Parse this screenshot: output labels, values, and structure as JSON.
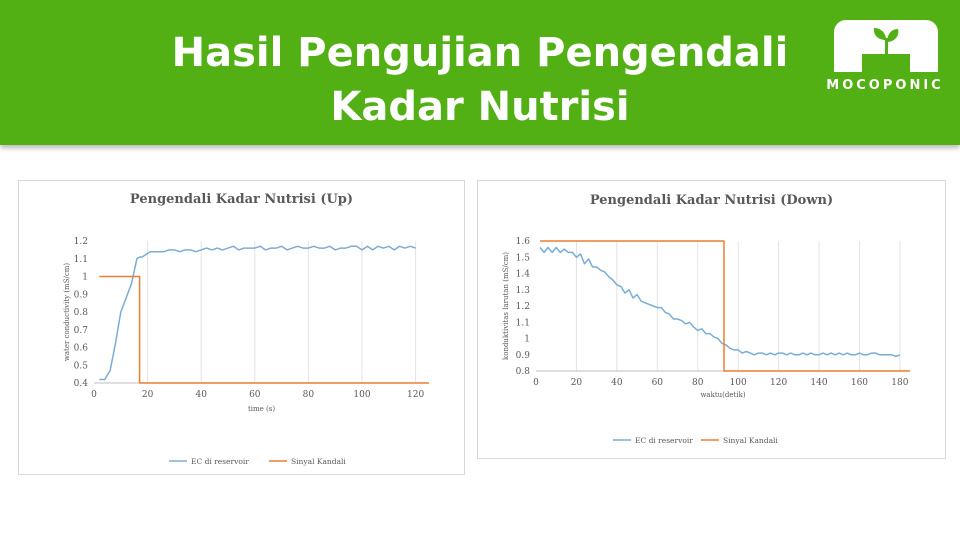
{
  "header": {
    "title_line1": "Hasil Pengujian Pengendali",
    "title_line2": "Kadar Nutrisi",
    "logo_text": "MOCOPONIC",
    "logo_icon": "sprout-icon",
    "background_color": "#52b014"
  },
  "chart_data": [
    {
      "type": "line",
      "title": "Pengendali Kadar Nutrisi  (Up)",
      "xlabel": "time (s)",
      "ylabel": "water conductivity (mS/cm)",
      "xlim": [
        0,
        125
      ],
      "ylim": [
        0.4,
        1.2
      ],
      "xticks": [
        0,
        20,
        40,
        60,
        80,
        100,
        120
      ],
      "yticks": [
        0.4,
        0.5,
        0.6,
        0.7,
        0.8,
        0.9,
        1,
        1.1,
        1.2
      ],
      "ytick_labels": [
        "0.4",
        "0.5",
        "0.6",
        "0.7",
        "0.8",
        "0.9",
        "1",
        "1.1",
        "1.2"
      ],
      "grid": "vertical",
      "legend": "bottom",
      "series": [
        {
          "name": "EC di reservoir",
          "color": "#7aadd6",
          "x": [
            2,
            4,
            6,
            8,
            10,
            12,
            14,
            16,
            17,
            18,
            20,
            21,
            22,
            24,
            26,
            28,
            30,
            32,
            34,
            36,
            38,
            40,
            42,
            44,
            46,
            48,
            50,
            52,
            54,
            56,
            58,
            60,
            62,
            64,
            66,
            68,
            70,
            72,
            74,
            76,
            78,
            80,
            82,
            84,
            86,
            88,
            90,
            92,
            94,
            96,
            98,
            100,
            102,
            104,
            106,
            108,
            110,
            112,
            114,
            116,
            118,
            120
          ],
          "y": [
            0.42,
            0.42,
            0.47,
            0.62,
            0.8,
            0.88,
            0.96,
            1.1,
            1.11,
            1.11,
            1.13,
            1.14,
            1.14,
            1.14,
            1.14,
            1.15,
            1.15,
            1.14,
            1.15,
            1.15,
            1.14,
            1.15,
            1.16,
            1.15,
            1.16,
            1.15,
            1.16,
            1.17,
            1.15,
            1.16,
            1.16,
            1.16,
            1.17,
            1.15,
            1.16,
            1.16,
            1.17,
            1.15,
            1.16,
            1.17,
            1.16,
            1.16,
            1.17,
            1.16,
            1.16,
            1.17,
            1.15,
            1.16,
            1.16,
            1.17,
            1.17,
            1.15,
            1.17,
            1.15,
            1.17,
            1.16,
            1.17,
            1.15,
            1.17,
            1.16,
            1.17,
            1.16
          ]
        },
        {
          "name": "Sinyal Kandali",
          "color": "#ed7d31",
          "x": [
            2,
            17,
            17,
            125
          ],
          "y": [
            1.0,
            1.0,
            0.4,
            0.4
          ]
        }
      ]
    },
    {
      "type": "line",
      "title": "Pengendali Kadar Nutrisi  (Down)",
      "xlabel": "waktu(detik)",
      "ylabel": "konduktivitas larutan (mS/cm)",
      "xlim": [
        0,
        185
      ],
      "ylim": [
        0.8,
        1.6
      ],
      "xticks": [
        0,
        20,
        40,
        60,
        80,
        100,
        120,
        140,
        160,
        180
      ],
      "yticks": [
        0.8,
        0.9,
        1,
        1.1,
        1.2,
        1.3,
        1.4,
        1.5,
        1.6
      ],
      "ytick_labels": [
        "0.8",
        "0.9",
        "1",
        "1.1",
        "1.2",
        "1.3",
        "1.4",
        "1.5",
        "1.6"
      ],
      "grid": "vertical",
      "legend": "bottom",
      "series": [
        {
          "name": "EC di reservoir",
          "color": "#7aadd6",
          "x": [
            2,
            4,
            6,
            8,
            10,
            12,
            14,
            16,
            18,
            20,
            22,
            24,
            26,
            28,
            30,
            32,
            34,
            36,
            38,
            40,
            42,
            44,
            46,
            48,
            50,
            52,
            54,
            56,
            58,
            60,
            62,
            64,
            66,
            68,
            70,
            72,
            74,
            76,
            78,
            80,
            82,
            84,
            86,
            88,
            90,
            92,
            94,
            96,
            98,
            100,
            102,
            104,
            106,
            108,
            110,
            112,
            114,
            116,
            118,
            120,
            122,
            124,
            126,
            128,
            130,
            132,
            134,
            136,
            138,
            140,
            142,
            144,
            146,
            148,
            150,
            152,
            154,
            156,
            158,
            160,
            162,
            164,
            166,
            168,
            170,
            172,
            174,
            176,
            178,
            180
          ],
          "y": [
            1.56,
            1.53,
            1.56,
            1.53,
            1.56,
            1.53,
            1.55,
            1.53,
            1.53,
            1.5,
            1.52,
            1.46,
            1.49,
            1.44,
            1.44,
            1.42,
            1.41,
            1.38,
            1.36,
            1.33,
            1.32,
            1.28,
            1.3,
            1.25,
            1.27,
            1.23,
            1.22,
            1.21,
            1.2,
            1.19,
            1.19,
            1.16,
            1.15,
            1.12,
            1.12,
            1.11,
            1.09,
            1.1,
            1.07,
            1.05,
            1.06,
            1.03,
            1.03,
            1.01,
            1.0,
            0.97,
            0.96,
            0.94,
            0.93,
            0.93,
            0.91,
            0.92,
            0.91,
            0.9,
            0.91,
            0.91,
            0.9,
            0.91,
            0.9,
            0.91,
            0.91,
            0.9,
            0.91,
            0.9,
            0.9,
            0.91,
            0.9,
            0.91,
            0.9,
            0.9,
            0.91,
            0.9,
            0.91,
            0.9,
            0.91,
            0.9,
            0.91,
            0.9,
            0.9,
            0.91,
            0.9,
            0.9,
            0.91,
            0.91,
            0.9,
            0.9,
            0.9,
            0.9,
            0.89,
            0.9
          ]
        },
        {
          "name": "Sinyal Kandali",
          "color": "#ed7d31",
          "x": [
            2,
            93,
            93,
            185
          ],
          "y": [
            1.6,
            1.6,
            0.8,
            0.8
          ]
        }
      ]
    }
  ]
}
